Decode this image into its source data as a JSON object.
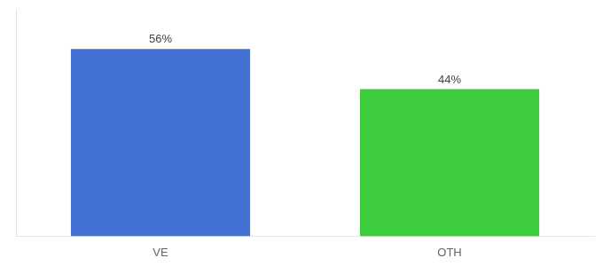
{
  "chart_data": {
    "type": "bar",
    "categories": [
      "VE",
      "OTH"
    ],
    "values": [
      56,
      44
    ],
    "value_labels": [
      "56%",
      "44%"
    ],
    "colors": [
      "#4472d4",
      "#3dcc3d"
    ],
    "ylim": [
      0,
      68
    ],
    "data_labels": true,
    "tick_labels": "x",
    "grid": false
  }
}
